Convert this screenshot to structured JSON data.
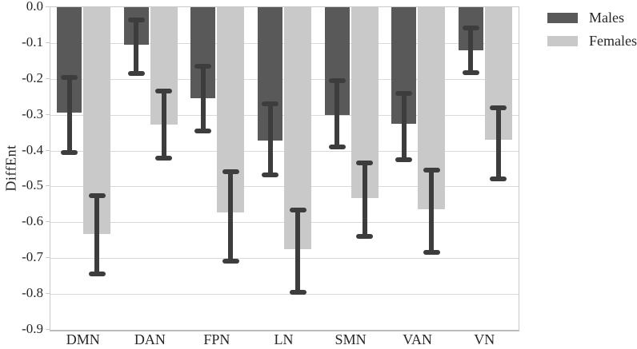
{
  "figure": {
    "ylabel": "DiffEnt"
  },
  "legend": {
    "items": [
      {
        "label": "Males",
        "color": "#595959"
      },
      {
        "label": "Females",
        "color": "#c9c9c9"
      }
    ]
  },
  "chart_data": {
    "type": "bar",
    "title": "",
    "xlabel": "",
    "ylabel": "DiffEnt",
    "categories": [
      "DMN",
      "DAN",
      "FPN",
      "LN",
      "SMN",
      "VAN",
      "VN"
    ],
    "series": [
      {
        "name": "Males",
        "color": "#595959",
        "values": [
          -0.295,
          -0.105,
          -0.253,
          -0.372,
          -0.3,
          -0.325,
          -0.12
        ],
        "error_upper": [
          -0.195,
          -0.035,
          -0.165,
          -0.27,
          -0.205,
          -0.24,
          -0.057
        ],
        "error_lower": [
          -0.405,
          -0.185,
          -0.345,
          -0.468,
          -0.39,
          -0.425,
          -0.183
        ]
      },
      {
        "name": "Females",
        "color": "#c9c9c9",
        "values": [
          -0.632,
          -0.327,
          -0.573,
          -0.675,
          -0.532,
          -0.563,
          -0.37
        ],
        "error_upper": [
          -0.525,
          -0.235,
          -0.458,
          -0.565,
          -0.435,
          -0.455,
          -0.28
        ],
        "error_lower": [
          -0.745,
          -0.42,
          -0.708,
          -0.795,
          -0.64,
          -0.685,
          -0.478
        ]
      }
    ],
    "ylim": [
      -0.9,
      0.0
    ],
    "yticks": [
      0.0,
      -0.1,
      -0.2,
      -0.3,
      -0.4,
      -0.5,
      -0.6,
      -0.7,
      -0.8,
      -0.9
    ],
    "ytick_labels": [
      "0.0",
      "-0.1",
      "-0.2",
      "-0.3",
      "-0.4",
      "-0.5",
      "-0.6",
      "-0.7",
      "-0.8",
      "-0.9"
    ],
    "grid": "horizontal",
    "grid_color": "#d9d9d9",
    "error_bar_color": "#3d3d3d",
    "legend_position": "top-right-outside"
  }
}
